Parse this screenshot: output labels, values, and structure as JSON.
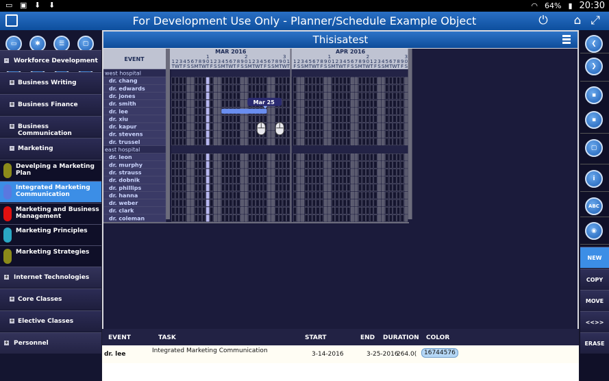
{
  "statusbar": {
    "battery": "64%",
    "time": "20:30"
  },
  "titlebar": {
    "title": "For Development Use Only -  Planner/Schedule Example Object"
  },
  "main": {
    "title": "Thisisatest"
  },
  "toolbar": {
    "buttons": [
      "folder",
      "gear",
      "list-box",
      "window",
      "copy",
      "list",
      "pause",
      "TB"
    ]
  },
  "nav": [
    {
      "label": "Workforce Development",
      "type": "cat",
      "sign": "-"
    },
    {
      "label": "Business Writing",
      "type": "sub",
      "sign": "+"
    },
    {
      "label": "Business Finance",
      "type": "sub",
      "sign": "+"
    },
    {
      "label": "Business Communication",
      "type": "sub",
      "sign": "+"
    },
    {
      "label": "Marketing",
      "type": "sub",
      "sign": "-"
    },
    {
      "label": "Develping a Marketing Plan",
      "type": "item",
      "color": "#8b8a1a"
    },
    {
      "label": "Integrated Marketing Communication",
      "type": "item",
      "color": "#5a78e0",
      "selected": true
    },
    {
      "label": "Marketing and Business Management",
      "type": "item",
      "color": "#e01010"
    },
    {
      "label": "Marketing Principles",
      "type": "item",
      "color": "#2aa7c4"
    },
    {
      "label": "Marketing Strategies",
      "type": "item",
      "color": "#8b8a1a"
    },
    {
      "label": "Internet Technologies",
      "type": "cat",
      "sign": "+"
    },
    {
      "label": "Core Classes",
      "type": "sub",
      "sign": "+"
    },
    {
      "label": "Elective Classes",
      "type": "sub",
      "sign": "+"
    },
    {
      "label": "Personnel",
      "type": "cat",
      "sign": "+"
    }
  ],
  "gantt": {
    "event_header": "EVENT",
    "months": [
      {
        "label": "MAR 2016",
        "days": 31,
        "first_dow": 2
      },
      {
        "label": "APR 2016",
        "days": 30,
        "first_dow": 5
      }
    ],
    "rows": [
      {
        "label": "west hospital",
        "group": true
      },
      {
        "label": "dr. chang"
      },
      {
        "label": "dr. edwards"
      },
      {
        "label": "dr. jones"
      },
      {
        "label": "dr. smith"
      },
      {
        "label": "dr. lee"
      },
      {
        "label": "dr. xiu"
      },
      {
        "label": "dr. kapur"
      },
      {
        "label": "dr. stevens"
      },
      {
        "label": "dr. trussel"
      },
      {
        "label": "east hospital",
        "group": true
      },
      {
        "label": "dr. leon"
      },
      {
        "label": "dr. murphy"
      },
      {
        "label": "dr. strauss"
      },
      {
        "label": "dr. dobnik"
      },
      {
        "label": "dr. phillips"
      },
      {
        "label": "dr. hanna"
      },
      {
        "label": "dr. weber"
      },
      {
        "label": "dr. clark"
      },
      {
        "label": "dr. coleman"
      }
    ],
    "highlight_day": "Mar 10",
    "task": {
      "row": "dr. lee",
      "start_day": 14,
      "end_day": 25,
      "color": "#6a8ef0"
    },
    "tooltip": "Mar 25"
  },
  "details": {
    "headers": {
      "event": "EVENT",
      "task": "TASK",
      "start": "START",
      "end": "END",
      "duration": "DURATION",
      "color": "COLOR"
    },
    "row": {
      "event": "dr. lee",
      "task": "Integrated Marketing Communication",
      "start": "3-14-2016",
      "end": "3-25-2016",
      "duration": "264.0(",
      "color": "16744576"
    }
  },
  "right": {
    "icon_buttons": [
      "chevron-left",
      "chevron-right",
      "save",
      "save-as",
      "window",
      "info",
      "abc",
      "mouse"
    ],
    "text_buttons": [
      "NEW",
      "COPY",
      "MOVE",
      "<<>>",
      "ERASE"
    ]
  }
}
